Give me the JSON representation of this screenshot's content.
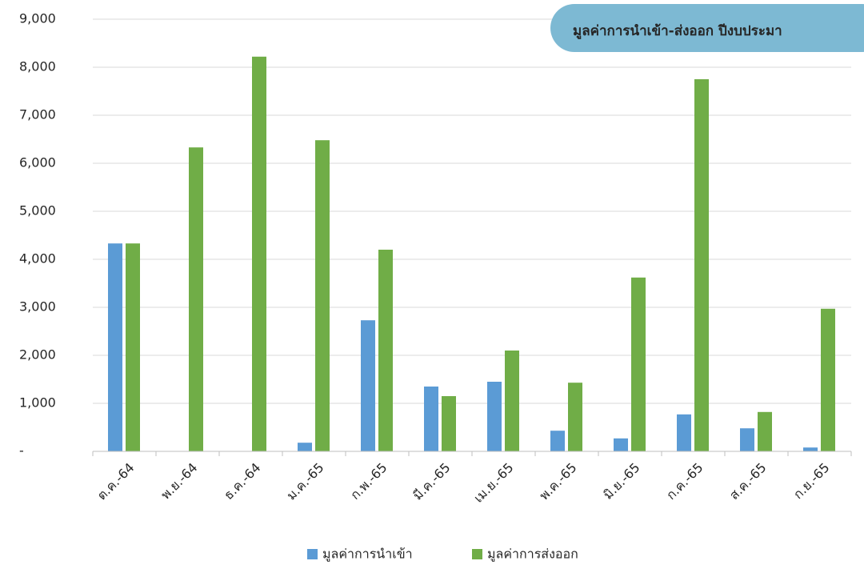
{
  "chart_data": {
    "type": "bar",
    "title": "มูลค่าการนำเข้า-ส่งออก ปีงบประมา",
    "categories": [
      "ต.ค.-64",
      "พ.ย.-64",
      "ธ.ค.-64",
      "ม.ค.-65",
      "ก.พ.-65",
      "มี.ค.-65",
      "เม.ย.-65",
      "พ.ค.-65",
      "มิ.ย.-65",
      "ก.ค.-65",
      "ส.ค.-65",
      "ก.ย.-65"
    ],
    "series": [
      {
        "name": "มูลค่าการนำเข้า",
        "color": "#5b9bd5",
        "values": [
          4330,
          0,
          0,
          180,
          2730,
          1350,
          1450,
          430,
          270,
          770,
          480,
          80
        ]
      },
      {
        "name": "มูลค่าการส่งออก",
        "color": "#70ad47",
        "values": [
          4330,
          6330,
          8220,
          6480,
          4200,
          1150,
          2100,
          1430,
          3620,
          7750,
          820,
          2970
        ]
      }
    ],
    "ylim": [
      0,
      9000
    ],
    "yticks": [
      {
        "value": 0,
        "label": "-"
      },
      {
        "value": 1000,
        "label": "1,000"
      },
      {
        "value": 2000,
        "label": "2,000"
      },
      {
        "value": 3000,
        "label": "3,000"
      },
      {
        "value": 4000,
        "label": "4,000"
      },
      {
        "value": 5000,
        "label": "5,000"
      },
      {
        "value": 6000,
        "label": "6,000"
      },
      {
        "value": 7000,
        "label": "7,000"
      },
      {
        "value": 8000,
        "label": "8,000"
      },
      {
        "value": 9000,
        "label": "9,000"
      }
    ],
    "grid": true,
    "legend": "bottom"
  }
}
